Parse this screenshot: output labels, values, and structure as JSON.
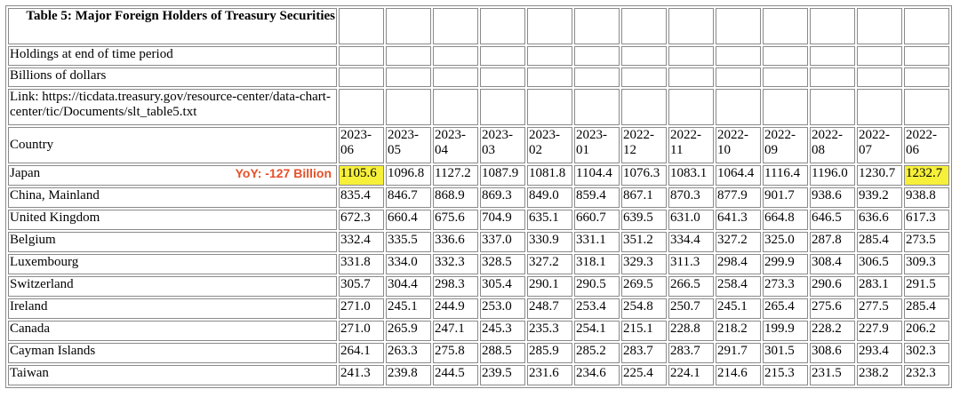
{
  "table": {
    "title": "Table 5: Major Foreign Holders of Treasury Securities",
    "subtitle_1": "Holdings at end of time period",
    "subtitle_2": "Billions of dollars",
    "link_text": "Link: https://ticdata.treasury.gov/resource-center/data-chart-center/tic/Documents/slt_table5.txt",
    "country_header": "Country",
    "periods": [
      "2023-06",
      "2023-05",
      "2023-04",
      "2023-03",
      "2023-02",
      "2023-01",
      "2022-12",
      "2022-11",
      "2022-10",
      "2022-09",
      "2022-08",
      "2022-07",
      "2022-06"
    ],
    "rows": [
      {
        "country": "Japan",
        "values": [
          "1105.6",
          "1096.8",
          "1127.2",
          "1087.9",
          "1081.8",
          "1104.4",
          "1076.3",
          "1083.1",
          "1064.4",
          "1116.4",
          "1196.0",
          "1230.7",
          "1232.7"
        ]
      },
      {
        "country": "China, Mainland",
        "values": [
          "835.4",
          "846.7",
          "868.9",
          "869.3",
          "849.0",
          "859.4",
          "867.1",
          "870.3",
          "877.9",
          "901.7",
          "938.6",
          "939.2",
          "938.8"
        ]
      },
      {
        "country": "United Kingdom",
        "values": [
          "672.3",
          "660.4",
          "675.6",
          "704.9",
          "635.1",
          "660.7",
          "639.5",
          "631.0",
          "641.3",
          "664.8",
          "646.5",
          "636.6",
          "617.3"
        ]
      },
      {
        "country": "Belgium",
        "values": [
          "332.4",
          "335.5",
          "336.6",
          "337.0",
          "330.9",
          "331.1",
          "351.2",
          "334.4",
          "327.2",
          "325.0",
          "287.8",
          "285.4",
          "273.5"
        ]
      },
      {
        "country": "Luxembourg",
        "values": [
          "331.8",
          "334.0",
          "332.3",
          "328.5",
          "327.2",
          "318.1",
          "329.3",
          "311.3",
          "298.4",
          "299.9",
          "308.4",
          "306.5",
          "309.3"
        ]
      },
      {
        "country": "Switzerland",
        "values": [
          "305.7",
          "304.4",
          "298.3",
          "305.4",
          "290.1",
          "290.5",
          "269.5",
          "266.5",
          "258.4",
          "273.3",
          "290.6",
          "283.1",
          "291.5"
        ]
      },
      {
        "country": "Ireland",
        "values": [
          "271.0",
          "245.1",
          "244.9",
          "253.0",
          "248.7",
          "253.4",
          "254.8",
          "250.7",
          "245.1",
          "265.4",
          "275.6",
          "277.5",
          "285.4"
        ]
      },
      {
        "country": "Canada",
        "values": [
          "271.0",
          "265.9",
          "247.1",
          "245.3",
          "235.3",
          "254.1",
          "215.1",
          "228.8",
          "218.2",
          "199.9",
          "228.2",
          "227.9",
          "206.2"
        ]
      },
      {
        "country": "Cayman Islands",
        "values": [
          "264.1",
          "263.3",
          "275.8",
          "288.5",
          "285.9",
          "285.2",
          "283.7",
          "283.7",
          "291.7",
          "301.5",
          "308.6",
          "293.4",
          "302.3"
        ]
      },
      {
        "country": "Taiwan",
        "values": [
          "241.3",
          "239.8",
          "244.5",
          "239.5",
          "231.6",
          "234.6",
          "225.4",
          "224.1",
          "214.6",
          "215.3",
          "231.5",
          "238.2",
          "232.3"
        ]
      }
    ]
  },
  "annotation": {
    "yoy_label": "YoY: -127 Billion",
    "color": "#e5512a"
  },
  "highlight_color": "#f6f03a"
}
